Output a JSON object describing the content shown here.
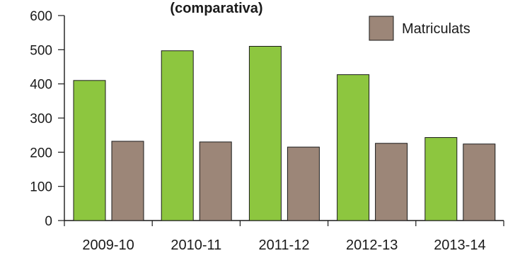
{
  "chart_data": {
    "type": "bar",
    "title": "(comparativa)",
    "categories": [
      "2009-10",
      "2010-11",
      "2011-12",
      "2012-13",
      "2013-14"
    ],
    "series": [
      {
        "name": "",
        "color": "#8dc63f",
        "values": [
          410,
          497,
          510,
          427,
          243
        ]
      },
      {
        "name": "Matriculats",
        "color": "#9c8678",
        "values": [
          232,
          230,
          215,
          226,
          224
        ]
      }
    ],
    "yticks": [
      0,
      100,
      200,
      300,
      400,
      500,
      600
    ],
    "ylim": [
      0,
      600
    ],
    "legend": {
      "position": "top-right",
      "label": "Matriculats"
    },
    "grid": false
  }
}
